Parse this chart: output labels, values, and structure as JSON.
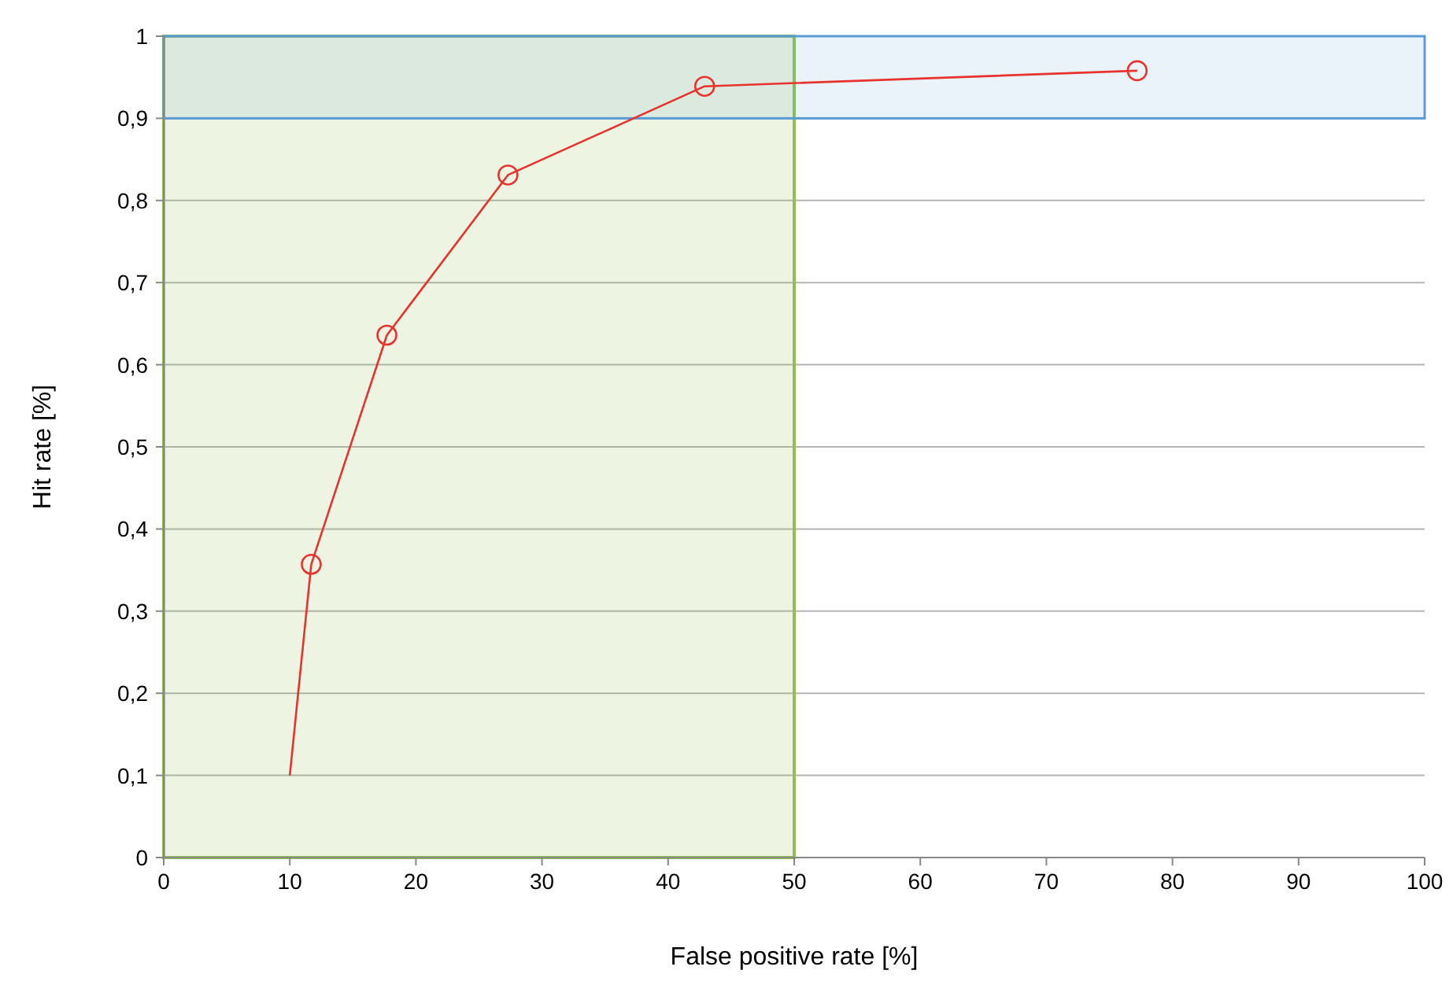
{
  "chart_data": {
    "type": "line",
    "xlabel": "False positive rate [%]",
    "ylabel": "Hit rate [%]",
    "xlim": [
      0,
      100
    ],
    "xticks": [
      0,
      10,
      20,
      30,
      40,
      50,
      60,
      70,
      80,
      90,
      100
    ],
    "ylim": [
      0,
      1
    ],
    "yticks": [
      0,
      {
        "value": 0.1,
        "label": "0,1"
      },
      {
        "value": 0.2,
        "label": "0,2"
      },
      {
        "value": 0.3,
        "label": "0,3"
      },
      {
        "value": 0.4,
        "label": "0,4"
      },
      {
        "value": 0.5,
        "label": "0,5"
      },
      {
        "value": 0.6,
        "label": "0,6"
      },
      {
        "value": 0.7,
        "label": "0,7"
      },
      {
        "value": 0.8,
        "label": "0,8"
      },
      {
        "value": 0.9,
        "label": "0,9"
      },
      1
    ],
    "grid": "y",
    "line_style": "solid",
    "bands": [
      {
        "axis": "x",
        "from": 0,
        "to": 50,
        "color": "#92c050"
      },
      {
        "axis": "y",
        "from": 0.9,
        "to": 1,
        "color": "#5b9bd5"
      }
    ],
    "series": [
      {
        "color": "#e8322e",
        "x": [
          10,
          11.7
        ],
        "values": [
          0.1,
          0.357
        ]
      },
      {
        "color": "#e8322e",
        "marker": "circle",
        "x": [
          11.7,
          17.7,
          27.3,
          42.9,
          77.2
        ],
        "values": [
          0.357,
          0.636,
          0.831,
          0.939,
          0.958
        ]
      }
    ]
  }
}
